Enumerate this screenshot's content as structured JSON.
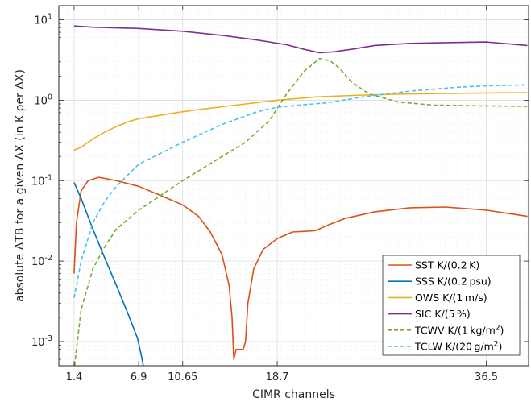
{
  "chart_data": {
    "type": "line",
    "xlabel": "CIMR channels",
    "ylabel": "absolute ΔTB for a given ΔX (in K per ΔX)",
    "yscale": "log",
    "xlim": [
      0.1,
      40.1
    ],
    "ylim": [
      0.0005,
      15
    ],
    "xticks": [
      1.4,
      6.9,
      10.65,
      18.7,
      36.5
    ],
    "yticks": [
      {
        "value": 0.001,
        "base": "10",
        "exp": "-3"
      },
      {
        "value": 0.01,
        "base": "10",
        "exp": "-2"
      },
      {
        "value": 0.1,
        "base": "10",
        "exp": "-1"
      },
      {
        "value": 1,
        "base": "10",
        "exp": "0"
      },
      {
        "value": 10,
        "base": "10",
        "exp": "1"
      }
    ],
    "grid": true,
    "legend_position": "lower-right",
    "series": [
      {
        "name": "SST K/(0.2 K)",
        "label_parts": [
          "SST K/(0.2 K)",
          "",
          ""
        ],
        "color": "#d95319",
        "dash": "solid",
        "points": [
          [
            1.4,
            0.007
          ],
          [
            1.6,
            0.03
          ],
          [
            2.0,
            0.075
          ],
          [
            2.6,
            0.1
          ],
          [
            3.5,
            0.11
          ],
          [
            5,
            0.1
          ],
          [
            6.9,
            0.085
          ],
          [
            8.5,
            0.068
          ],
          [
            10.65,
            0.05
          ],
          [
            12,
            0.036
          ],
          [
            13,
            0.023
          ],
          [
            14,
            0.012
          ],
          [
            14.6,
            0.005
          ],
          [
            14.85,
            0.002
          ],
          [
            15.0,
            0.0006
          ],
          [
            15.2,
            0.0008
          ],
          [
            15.6,
            0.0008
          ],
          [
            15.8,
            0.0008
          ],
          [
            16.0,
            0.001
          ],
          [
            16.2,
            0.003
          ],
          [
            16.7,
            0.008
          ],
          [
            17.5,
            0.014
          ],
          [
            18.7,
            0.019
          ],
          [
            20,
            0.023
          ],
          [
            21.2,
            0.0235
          ],
          [
            22,
            0.024
          ],
          [
            23,
            0.028
          ],
          [
            24.5,
            0.034
          ],
          [
            27,
            0.041
          ],
          [
            30,
            0.046
          ],
          [
            33,
            0.047
          ],
          [
            36.5,
            0.043
          ],
          [
            40,
            0.036
          ]
        ]
      },
      {
        "name": "SSS K/(0.2 psu)",
        "label_parts": [
          "SSS K/(0.2 psu)",
          "",
          ""
        ],
        "color": "#0072bd",
        "dash": "solid",
        "points": [
          [
            1.4,
            0.095
          ],
          [
            2,
            0.06
          ],
          [
            3,
            0.025
          ],
          [
            4,
            0.011
          ],
          [
            5,
            0.005
          ],
          [
            6,
            0.0022
          ],
          [
            6.8,
            0.0011
          ],
          [
            7.1,
            0.0007
          ],
          [
            7.3,
            0.0005
          ]
        ]
      },
      {
        "name": "OWS K/(1 m/s)",
        "label_parts": [
          "OWS K/(1 m/s)",
          "",
          ""
        ],
        "color": "#edb120",
        "dash": "solid",
        "points": [
          [
            1.4,
            0.24
          ],
          [
            2,
            0.26
          ],
          [
            3,
            0.33
          ],
          [
            4,
            0.4
          ],
          [
            5,
            0.47
          ],
          [
            6,
            0.54
          ],
          [
            6.9,
            0.59
          ],
          [
            10.65,
            0.72
          ],
          [
            14,
            0.83
          ],
          [
            18.7,
            1.0
          ],
          [
            22,
            1.1
          ],
          [
            26,
            1.16
          ],
          [
            30,
            1.2
          ],
          [
            36.5,
            1.23
          ],
          [
            40,
            1.24
          ]
        ]
      },
      {
        "name": "SIC K/(5 %)",
        "label_parts": [
          "SIC K/(5 %)",
          "",
          ""
        ],
        "color": "#7e2f8e",
        "dash": "solid",
        "points": [
          [
            1.4,
            8.4
          ],
          [
            3,
            8.1
          ],
          [
            6.9,
            7.8
          ],
          [
            10.65,
            7.2
          ],
          [
            14,
            6.4
          ],
          [
            17,
            5.6
          ],
          [
            19.5,
            4.9
          ],
          [
            21,
            4.3
          ],
          [
            22.3,
            3.9
          ],
          [
            23.5,
            4.0
          ],
          [
            25,
            4.3
          ],
          [
            27,
            4.8
          ],
          [
            30,
            5.1
          ],
          [
            33,
            5.2
          ],
          [
            36.5,
            5.3
          ],
          [
            40,
            4.8
          ]
        ]
      },
      {
        "name": "TCWV K/(1 kg/m2)",
        "label_parts": [
          "TCWV K/(1 kg/m",
          "2",
          ")"
        ],
        "color": "#77ac30",
        "dash": "dashed",
        "points": [
          [
            1.45,
            0.0005
          ],
          [
            1.6,
            0.0008
          ],
          [
            2,
            0.0025
          ],
          [
            3,
            0.008
          ],
          [
            4,
            0.015
          ],
          [
            5,
            0.025
          ],
          [
            6.9,
            0.043
          ],
          [
            10.65,
            0.1
          ],
          [
            14,
            0.2
          ],
          [
            16,
            0.3
          ],
          [
            18,
            0.55
          ],
          [
            19.5,
            1.2
          ],
          [
            21,
            2.3
          ],
          [
            22.3,
            3.3
          ],
          [
            23.2,
            3.1
          ],
          [
            24,
            2.5
          ],
          [
            25,
            1.7
          ],
          [
            26.5,
            1.2
          ],
          [
            29,
            0.95
          ],
          [
            32,
            0.87
          ],
          [
            36.5,
            0.85
          ],
          [
            40,
            0.84
          ]
        ]
      },
      {
        "name": "TCLW K/(20 g/m2)",
        "label_parts": [
          "TCLW K/(20 g/m",
          "2",
          ")"
        ],
        "color": "#4dbeee",
        "dash": "dashed",
        "points": [
          [
            1.4,
            0.0035
          ],
          [
            2,
            0.01
          ],
          [
            3,
            0.03
          ],
          [
            4,
            0.055
          ],
          [
            5,
            0.085
          ],
          [
            6.9,
            0.16
          ],
          [
            10.65,
            0.3
          ],
          [
            14,
            0.5
          ],
          [
            17,
            0.72
          ],
          [
            18.7,
            0.82
          ],
          [
            21,
            0.88
          ],
          [
            23,
            0.93
          ],
          [
            26,
            1.1
          ],
          [
            30,
            1.3
          ],
          [
            34,
            1.45
          ],
          [
            37,
            1.52
          ],
          [
            40,
            1.55
          ]
        ]
      }
    ]
  }
}
